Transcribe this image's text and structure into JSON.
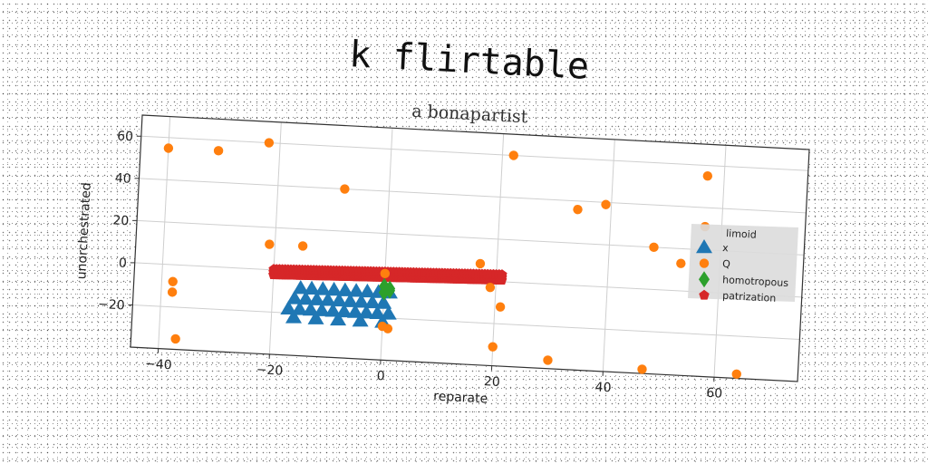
{
  "chart_data": {
    "type": "scatter",
    "title": "k flirtable",
    "subtitle": "a bonapartist",
    "xlabel": "reparate",
    "ylabel": "unorchestrated",
    "xlim": [
      -45,
      75
    ],
    "ylim": [
      -40,
      70
    ],
    "xticks": [
      -40,
      -20,
      0,
      20,
      40,
      60
    ],
    "yticks": [
      -20,
      0,
      20,
      40,
      60
    ],
    "grid": true,
    "legend": {
      "title": "limoid",
      "position": "right"
    },
    "series": [
      {
        "name": "x",
        "marker": "triangle",
        "color": "#1f77b4",
        "points": [
          [
            -15,
            -8
          ],
          [
            -13,
            -8
          ],
          [
            -11,
            -8
          ],
          [
            -9,
            -8
          ],
          [
            -7,
            -8
          ],
          [
            -5,
            -8
          ],
          [
            -3,
            -8
          ],
          [
            -1,
            -8
          ],
          [
            1,
            -8
          ],
          [
            -16,
            -13
          ],
          [
            -14,
            -13
          ],
          [
            -12,
            -13
          ],
          [
            -10,
            -13
          ],
          [
            -8,
            -13
          ],
          [
            -6,
            -13
          ],
          [
            -4,
            -13
          ],
          [
            -2,
            -13
          ],
          [
            0,
            -13
          ],
          [
            -17,
            -18
          ],
          [
            -15,
            -18
          ],
          [
            -13,
            -18
          ],
          [
            -11,
            -18
          ],
          [
            -9,
            -18
          ],
          [
            -7,
            -18
          ],
          [
            -5,
            -18
          ],
          [
            -3,
            -18
          ],
          [
            -1,
            -18
          ],
          [
            1,
            -18
          ],
          [
            -16,
            -22
          ],
          [
            -12,
            -22
          ],
          [
            -8,
            -22
          ],
          [
            -4,
            -22
          ],
          [
            0,
            -22
          ]
        ]
      },
      {
        "name": "Q",
        "marker": "circle",
        "color": "#ff7f0e",
        "points": [
          [
            -40,
            55
          ],
          [
            -31,
            55
          ],
          [
            -22,
            60
          ],
          [
            22,
            60
          ],
          [
            57,
            55
          ],
          [
            -8,
            40
          ],
          [
            34,
            36
          ],
          [
            39,
            39
          ],
          [
            57,
            31
          ],
          [
            48,
            20
          ],
          [
            53,
            13
          ],
          [
            -21,
            12
          ],
          [
            -15,
            12
          ],
          [
            17,
            8
          ],
          [
            19,
            -3
          ],
          [
            0,
            1
          ],
          [
            -38,
            -8
          ],
          [
            -38,
            -13
          ],
          [
            21,
            -12
          ],
          [
            0,
            -24
          ],
          [
            1,
            -25
          ],
          [
            20,
            -31
          ],
          [
            30,
            -36
          ],
          [
            47,
            -38
          ],
          [
            64,
            -38
          ],
          [
            -37,
            -35
          ]
        ]
      },
      {
        "name": "homotropous",
        "marker": "diamond",
        "color": "#2ca02c",
        "points": [
          [
            0,
            -5
          ],
          [
            1,
            -6
          ],
          [
            1,
            -7
          ],
          [
            0,
            -8
          ]
        ]
      },
      {
        "name": "patrization",
        "marker": "pentagon",
        "color": "#d62728",
        "points": []
      }
    ]
  }
}
